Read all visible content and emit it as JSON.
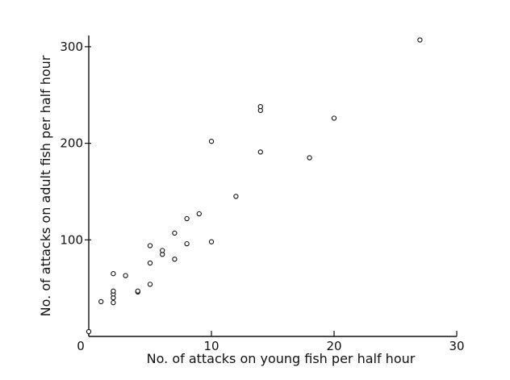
{
  "chart_data": {
    "type": "scatter",
    "title": "",
    "xlabel": "No. of attacks on young fish per half hour",
    "ylabel": "No. of attacks on adult fish per half hour",
    "xlim": [
      0,
      30
    ],
    "ylim": [
      0,
      310
    ],
    "x_ticks": [
      0,
      10,
      20,
      30
    ],
    "x_tick_labels": [
      "0",
      "10",
      "20",
      "30"
    ],
    "y_ticks": [
      100,
      200,
      300
    ],
    "y_tick_labels": [
      "100",
      "200",
      "300"
    ],
    "grid": false,
    "legend": "none",
    "marker": "open-circle",
    "series": [
      {
        "points": [
          [
            0,
            5
          ],
          [
            1,
            36
          ],
          [
            2,
            35
          ],
          [
            2,
            40
          ],
          [
            2,
            44
          ],
          [
            2,
            47
          ],
          [
            2,
            65
          ],
          [
            3,
            63
          ],
          [
            4,
            46
          ],
          [
            4,
            47
          ],
          [
            5,
            54
          ],
          [
            5,
            76
          ],
          [
            5,
            94
          ],
          [
            6,
            85
          ],
          [
            6,
            89
          ],
          [
            7,
            80
          ],
          [
            7,
            107
          ],
          [
            8,
            96
          ],
          [
            8,
            122
          ],
          [
            9,
            127
          ],
          [
            10,
            98
          ],
          [
            10,
            202
          ],
          [
            12,
            145
          ],
          [
            14,
            191
          ],
          [
            14,
            234
          ],
          [
            14,
            238
          ],
          [
            18,
            185
          ],
          [
            20,
            226
          ],
          [
            27,
            307
          ]
        ]
      }
    ]
  }
}
